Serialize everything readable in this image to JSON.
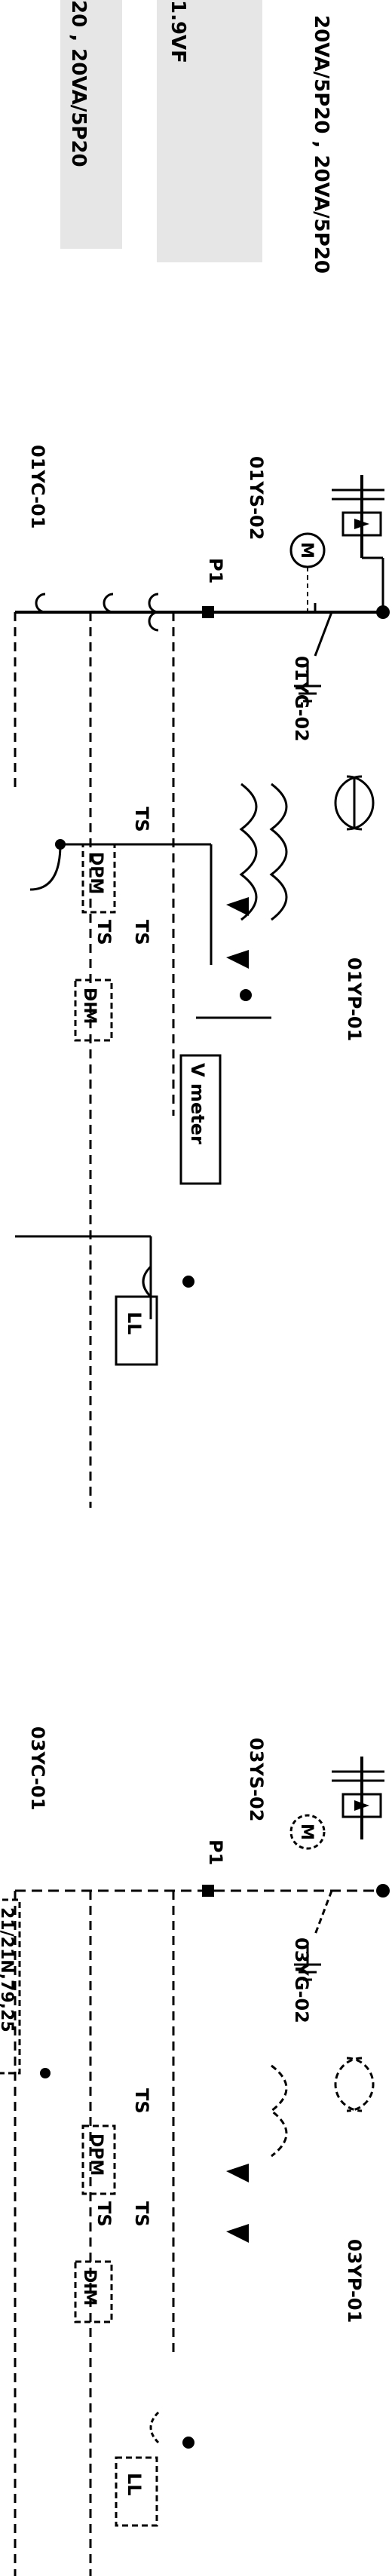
{
  "header": {
    "ct_rating": "20VA/5P20 , 20VA/5P20",
    "ct_rating_2": "20 , 20VA/5P20",
    "cell_text": "1.9VF"
  },
  "feeder1": {
    "ys": "01YS-02",
    "yc": "01YC-01",
    "yg": "01YG-02",
    "yp": "01YP-01",
    "motor": "M",
    "p1": "P1",
    "ts": "TS",
    "dpm": "DPM",
    "dim": "DIM",
    "vmeter": "V meter",
    "ll": "LL"
  },
  "feeder2": {
    "ys": "03YS-02",
    "yc": "03YC-01",
    "yg": "03YG-02",
    "yp": "03YP-01",
    "motor": "M",
    "p1": "P1",
    "ts": "TS",
    "dpm": "DPM",
    "dim": "DIM",
    "relay": "21/21N,79,25",
    "ll": "LL"
  }
}
